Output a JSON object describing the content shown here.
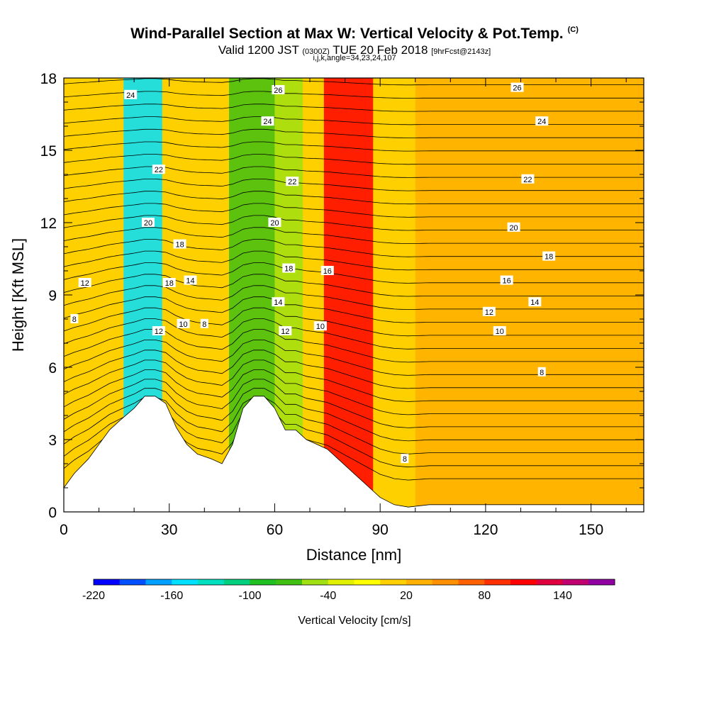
{
  "chart_data": {
    "type": "heatmap",
    "title": "Wind-Parallel Section at Max W: Vertical Velocity & Pot.Temp.",
    "title_mark": "(C)",
    "subtitle_main": "Valid 1200 JST",
    "subtitle_utc": "(0300Z)",
    "subtitle_date": "TUE 20 Feb 2018",
    "subtitle_fcst": "[9hrFcst@2143z]",
    "params": "i,j,k,angle=34,23,24,107",
    "xlabel": "Distance [nm]",
    "ylabel": "Height [Kft MSL]",
    "xlim": [
      0,
      165
    ],
    "ylim": [
      0,
      18
    ],
    "x_ticks": [
      "0",
      "30",
      "60",
      "90",
      "120",
      "150"
    ],
    "y_ticks": [
      "0",
      "3",
      "6",
      "9",
      "12",
      "15",
      "18"
    ],
    "colorbar": {
      "label": "Vertical Velocity [cm/s]",
      "range": [
        -220,
        180
      ],
      "tick_labels": [
        "-220",
        "-160",
        "-100",
        "-40",
        "20",
        "80",
        "140"
      ],
      "colors": [
        "#0000ff",
        "#0050ff",
        "#00a0ff",
        "#00e0ff",
        "#00e0c0",
        "#00d080",
        "#20c020",
        "#40c010",
        "#a0e010",
        "#e0f000",
        "#ffff00",
        "#ffd000",
        "#ffb000",
        "#ff9000",
        "#ff6000",
        "#ff3000",
        "#ff0000",
        "#e00040",
        "#c00070",
        "#9000a0"
      ]
    },
    "terrain_profile": {
      "x_nm": [
        0,
        3,
        7,
        10,
        13,
        16,
        20,
        23,
        26,
        29,
        32,
        35,
        38,
        42,
        45,
        48,
        51,
        54,
        57,
        60,
        63,
        66,
        69,
        72,
        75,
        78,
        81,
        84,
        87,
        90,
        94,
        98,
        104,
        110,
        120,
        130,
        140,
        150,
        160,
        165
      ],
      "h_kft": [
        1.0,
        1.6,
        2.2,
        2.8,
        3.4,
        3.8,
        4.3,
        4.8,
        4.8,
        4.5,
        3.5,
        2.8,
        2.4,
        2.2,
        2.0,
        2.8,
        4.3,
        4.8,
        4.8,
        4.3,
        3.4,
        3.4,
        3.0,
        2.8,
        2.6,
        2.2,
        1.8,
        1.4,
        1.0,
        0.6,
        0.3,
        0.2,
        0.3,
        0.3,
        0.3,
        0.3,
        0.3,
        0.3,
        0.3,
        0.3
      ]
    },
    "velocity_bands": [
      {
        "x_start": 17,
        "x_end": 28,
        "value": -150
      },
      {
        "x_start": 47,
        "x_end": 60,
        "value": -80
      },
      {
        "x_start": 60,
        "x_end": 68,
        "value": -60
      },
      {
        "x_start": 74,
        "x_end": 88,
        "value": 110
      },
      {
        "x_start": 100,
        "x_end": 165,
        "value": 30
      }
    ],
    "theta_contour_labels": [
      {
        "x": 19,
        "y": 17.3,
        "text": "24"
      },
      {
        "x": 27,
        "y": 14.2,
        "text": "22"
      },
      {
        "x": 24,
        "y": 12.0,
        "text": "20"
      },
      {
        "x": 33,
        "y": 11.1,
        "text": "18"
      },
      {
        "x": 30,
        "y": 9.5,
        "text": "18"
      },
      {
        "x": 36,
        "y": 9.6,
        "text": "14"
      },
      {
        "x": 34,
        "y": 7.8,
        "text": "10"
      },
      {
        "x": 40,
        "y": 7.8,
        "text": "8"
      },
      {
        "x": 27,
        "y": 7.5,
        "text": "12"
      },
      {
        "x": 6,
        "y": 9.5,
        "text": "12"
      },
      {
        "x": 3,
        "y": 8.0,
        "text": "8"
      },
      {
        "x": 61,
        "y": 17.5,
        "text": "26"
      },
      {
        "x": 58,
        "y": 16.2,
        "text": "24"
      },
      {
        "x": 65,
        "y": 13.7,
        "text": "22"
      },
      {
        "x": 60,
        "y": 12.0,
        "text": "20"
      },
      {
        "x": 64,
        "y": 10.1,
        "text": "18"
      },
      {
        "x": 61,
        "y": 8.7,
        "text": "14"
      },
      {
        "x": 63,
        "y": 7.5,
        "text": "12"
      },
      {
        "x": 75,
        "y": 10.0,
        "text": "16"
      },
      {
        "x": 73,
        "y": 7.7,
        "text": "10"
      },
      {
        "x": 129,
        "y": 17.6,
        "text": "26"
      },
      {
        "x": 136,
        "y": 16.2,
        "text": "24"
      },
      {
        "x": 132,
        "y": 13.8,
        "text": "22"
      },
      {
        "x": 128,
        "y": 11.8,
        "text": "20"
      },
      {
        "x": 138,
        "y": 10.6,
        "text": "18"
      },
      {
        "x": 126,
        "y": 9.6,
        "text": "16"
      },
      {
        "x": 134,
        "y": 8.7,
        "text": "14"
      },
      {
        "x": 121,
        "y": 8.3,
        "text": "12"
      },
      {
        "x": 124,
        "y": 7.5,
        "text": "10"
      },
      {
        "x": 136,
        "y": 5.8,
        "text": "8"
      },
      {
        "x": 97,
        "y": 2.2,
        "text": "8"
      }
    ]
  }
}
